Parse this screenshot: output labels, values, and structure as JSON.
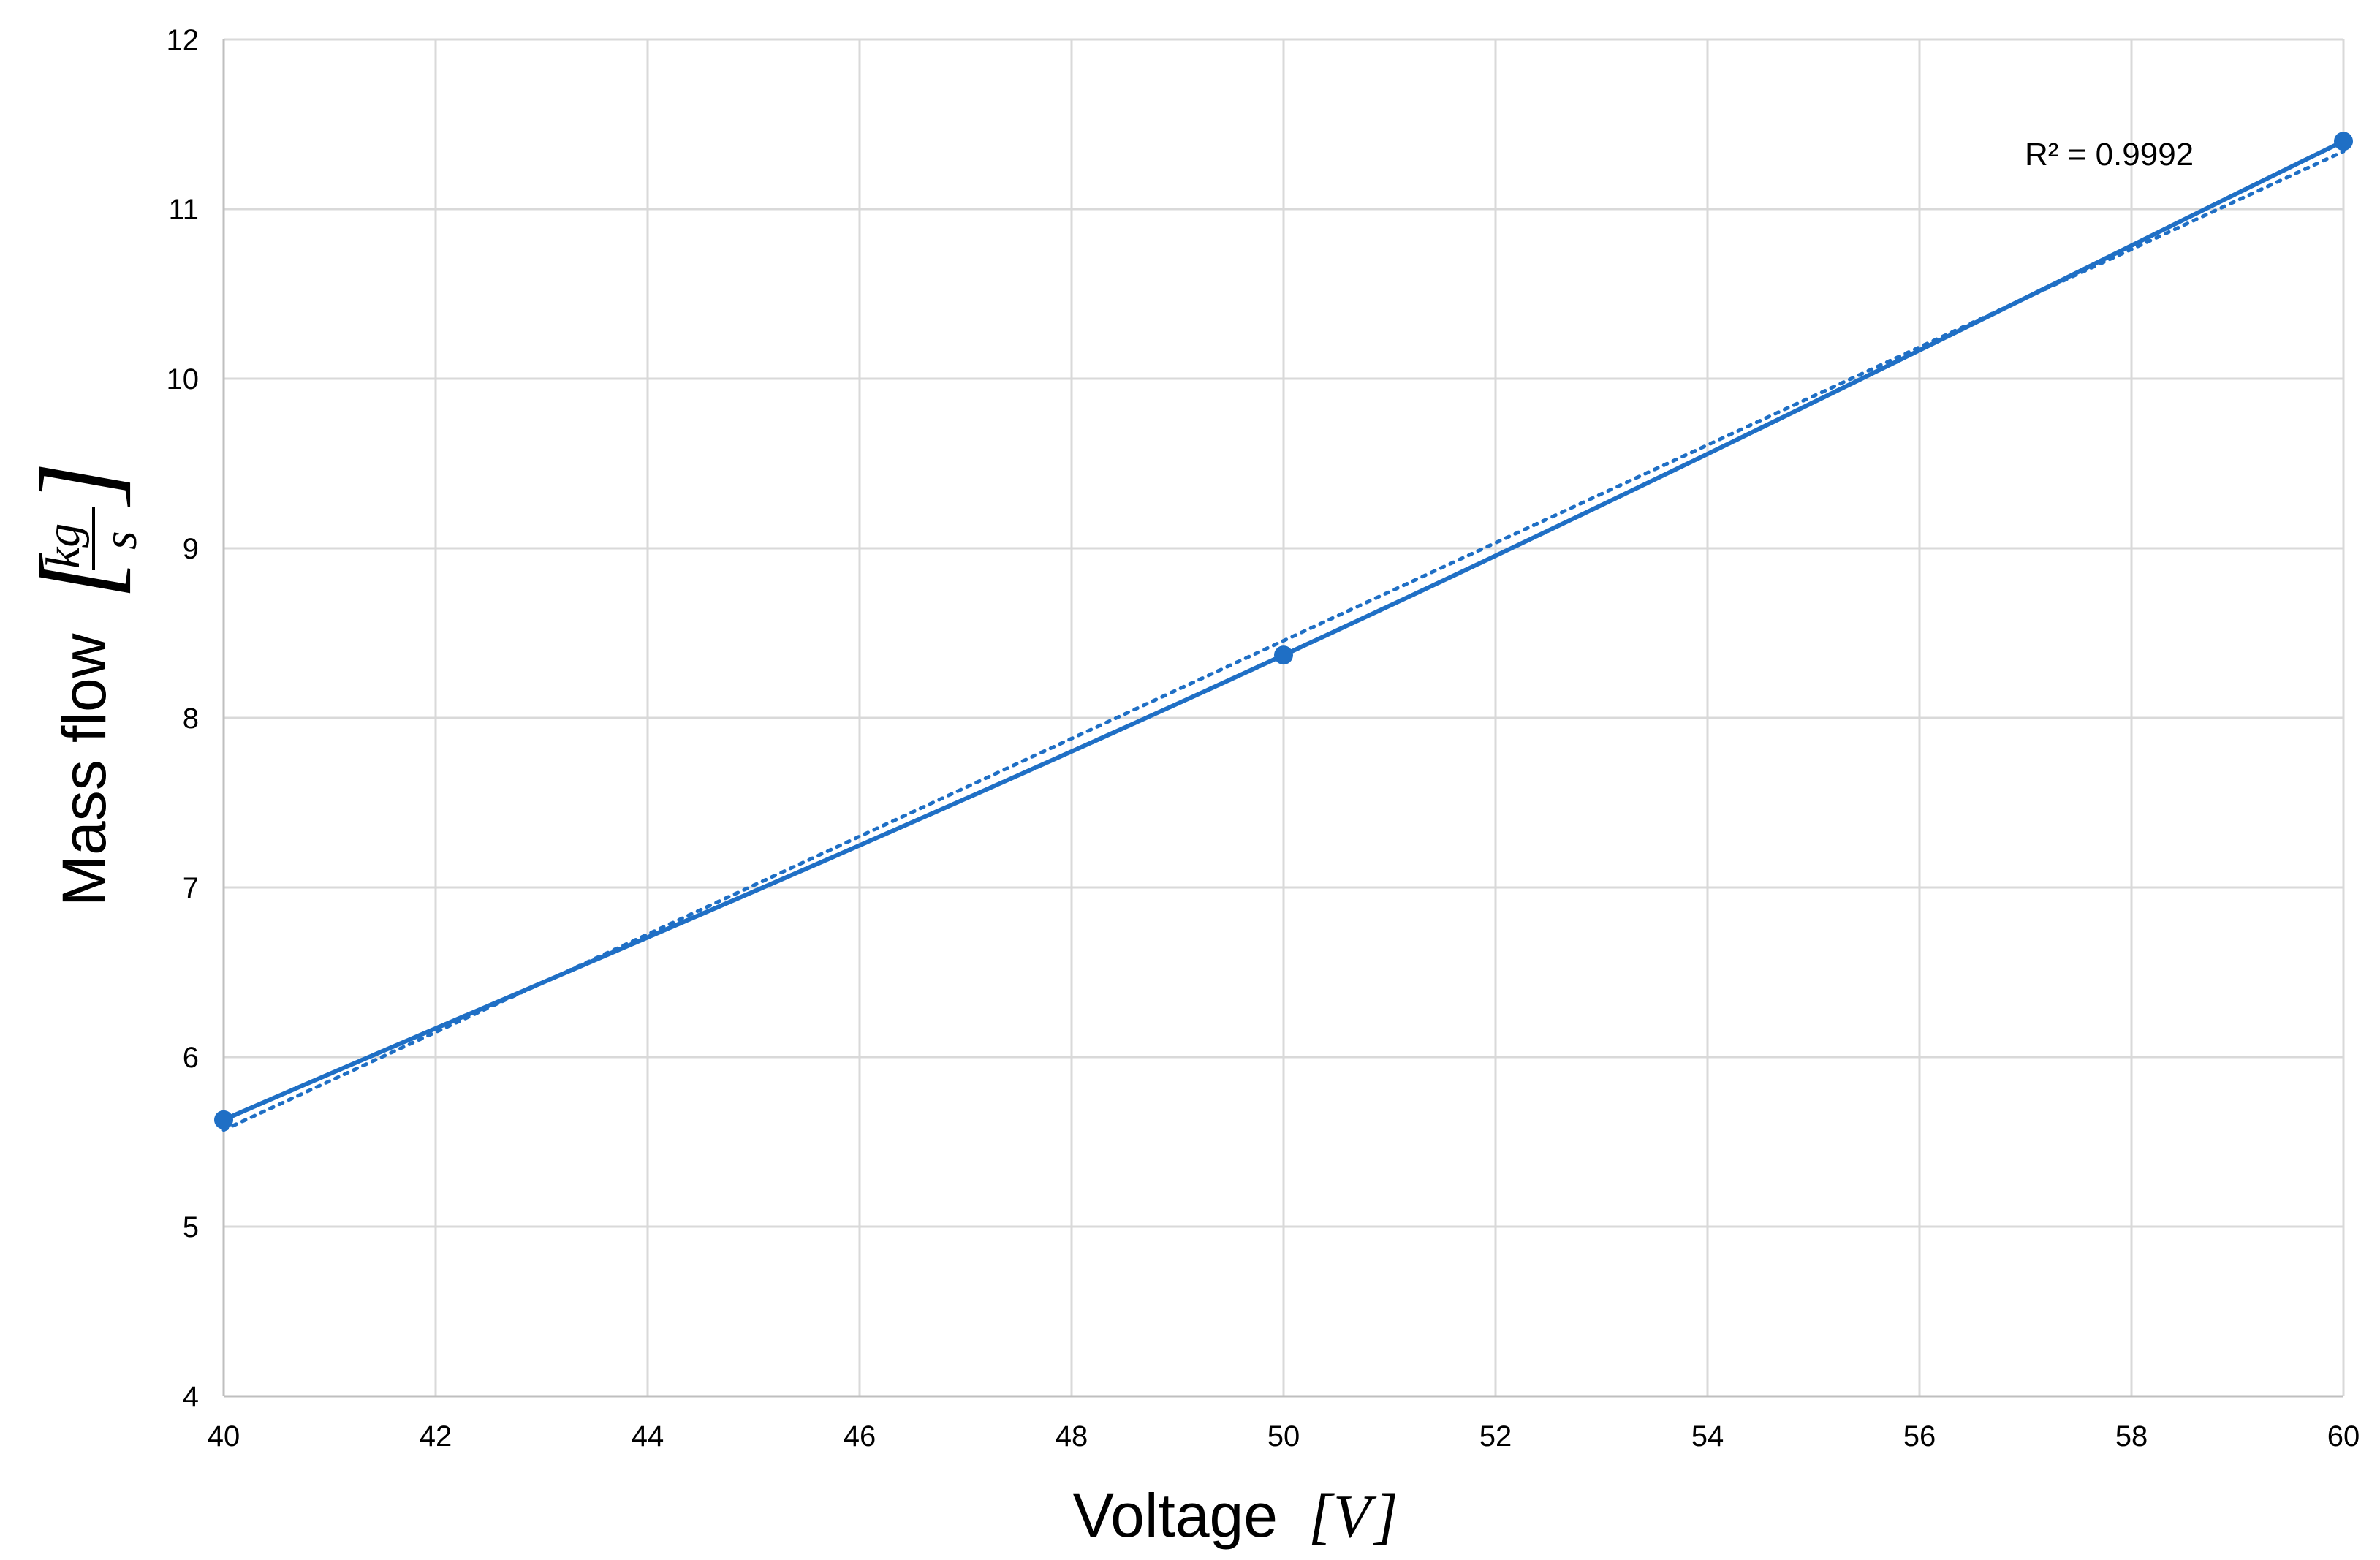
{
  "chart_data": {
    "type": "line",
    "x": [
      40,
      50,
      60
    ],
    "series": [
      {
        "values": [
          5.63,
          8.37,
          11.4
        ],
        "color": "#1f6fc5",
        "marker": "circle"
      }
    ],
    "trendline": {
      "kind": "linear",
      "style": "dotted",
      "color": "#1f6fc5",
      "r_squared_label": "R² = 0.9992",
      "start": [
        40,
        5.57
      ],
      "end": [
        60,
        11.34
      ]
    },
    "xlabel": {
      "text": "Voltage",
      "unit_open": "[",
      "unit": "V",
      "unit_close": "]"
    },
    "ylabel": {
      "text": "Mass flow",
      "unit_numerator": "kg",
      "unit_denominator": "s",
      "unit_open": "[",
      "unit_close": "]"
    },
    "xlim": [
      40,
      60
    ],
    "ylim": [
      4,
      12
    ],
    "xticks": [
      40,
      42,
      44,
      46,
      48,
      50,
      52,
      54,
      56,
      58,
      60
    ],
    "yticks": [
      4,
      5,
      6,
      7,
      8,
      9,
      10,
      11,
      12
    ],
    "grid": true,
    "gridColor": "#d9d9d9",
    "axisColor": "#bfbfbf"
  }
}
